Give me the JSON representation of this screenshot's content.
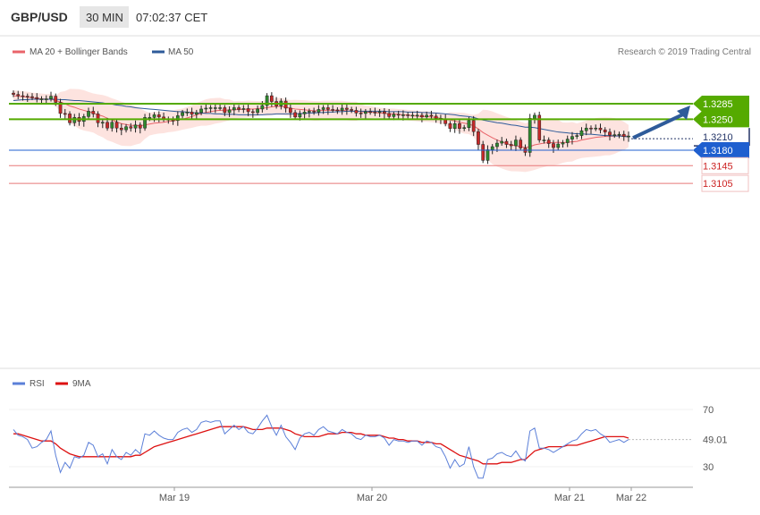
{
  "header": {
    "symbol": "GBP/USD",
    "timeframe": "30 MIN",
    "time": "07:02:37 CET"
  },
  "legend": {
    "ma20_label": "MA 20 + Bollinger Bands",
    "ma50_label": "MA 50",
    "copyright": "Research © 2019 Trading Central",
    "ma20_color": "#e9646a",
    "ma50_color": "#2e5b9a",
    "band_color": "#fcd9d4"
  },
  "rsi_legend": {
    "rsi_label": "RSI",
    "ma_label": "9MA",
    "rsi_color": "#5b7fd8",
    "ma_color": "#dd1111"
  },
  "levels": [
    {
      "value": 1.3285,
      "label": "1.3285",
      "type": "resistance",
      "color": "#55aa00"
    },
    {
      "value": 1.325,
      "label": "1.3250",
      "type": "resistance",
      "color": "#55aa00"
    },
    {
      "value": 1.321,
      "label": "1.3210",
      "type": "current",
      "color": "#223366"
    },
    {
      "value": 1.318,
      "label": "1.3180",
      "type": "pivot",
      "color": "#1f5fcf"
    },
    {
      "value": 1.3145,
      "label": "1.3145",
      "type": "support",
      "color": "#e87878"
    },
    {
      "value": 1.3105,
      "label": "1.3105",
      "type": "support",
      "color": "#e87878"
    }
  ],
  "arrow_target": 1.3285,
  "chart_data": {
    "type": "candlestick",
    "title": "GBP/USD 30 MIN",
    "x_ticks": [
      "Mar 19",
      "Mar 20",
      "Mar 21",
      "Mar 22"
    ],
    "ylim": [
      1.31,
      1.331
    ],
    "closes": [
      1.3306,
      1.3303,
      1.3302,
      1.3301,
      1.3299,
      1.3296,
      1.3296,
      1.3296,
      1.3302,
      1.3288,
      1.3263,
      1.3262,
      1.3242,
      1.3254,
      1.3245,
      1.3256,
      1.3268,
      1.3262,
      1.3242,
      1.3243,
      1.323,
      1.3243,
      1.323,
      1.3226,
      1.3233,
      1.323,
      1.3237,
      1.323,
      1.3254,
      1.3254,
      1.326,
      1.3255,
      1.325,
      1.3248,
      1.3247,
      1.3258,
      1.3265,
      1.3266,
      1.3261,
      1.3265,
      1.3273,
      1.3275,
      1.3276,
      1.3276,
      1.3276,
      1.3265,
      1.3271,
      1.3276,
      1.3272,
      1.3274,
      1.3267,
      1.3265,
      1.3273,
      1.3281,
      1.3303,
      1.329,
      1.328,
      1.3291,
      1.3275,
      1.3265,
      1.3255,
      1.3262,
      1.3266,
      1.3268,
      1.3266,
      1.3272,
      1.3276,
      1.3272,
      1.3271,
      1.327,
      1.3275,
      1.3272,
      1.327,
      1.3264,
      1.3263,
      1.3267,
      1.3266,
      1.3265,
      1.3267,
      1.3263,
      1.3256,
      1.3261,
      1.3259,
      1.326,
      1.3258,
      1.3259,
      1.3259,
      1.3255,
      1.3259,
      1.3257,
      1.3252,
      1.3251,
      1.324,
      1.3229,
      1.324,
      1.3229,
      1.3231,
      1.3247,
      1.3222,
      1.3193,
      1.3157,
      1.3181,
      1.3188,
      1.3196,
      1.32,
      1.3193,
      1.319,
      1.3203,
      1.3185,
      1.3175,
      1.3252,
      1.3259,
      1.3203,
      1.3203,
      1.3195,
      1.3186,
      1.3194,
      1.3197,
      1.3205,
      1.3211,
      1.3213,
      1.3224,
      1.323,
      1.3229,
      1.323,
      1.3226,
      1.3221,
      1.3214,
      1.3215,
      1.3216,
      1.3211,
      1.3212
    ],
    "ma20": [
      1.3303,
      1.3302,
      1.3301,
      1.33,
      1.3298,
      1.3297,
      1.3296,
      1.3295,
      1.3295,
      1.3292,
      1.3289,
      1.3285,
      1.328,
      1.3277,
      1.3273,
      1.327,
      1.3267,
      1.3264,
      1.326,
      1.3257,
      1.3252,
      1.3248,
      1.3244,
      1.324,
      1.3238,
      1.3236,
      1.3236,
      1.3235,
      1.3237,
      1.3239,
      1.3241,
      1.3242,
      1.3243,
      1.3245,
      1.3246,
      1.3248,
      1.325,
      1.3253,
      1.3256,
      1.326,
      1.3263,
      1.3265,
      1.3267,
      1.3269,
      1.327,
      1.327,
      1.3271,
      1.3271,
      1.3272,
      1.3272,
      1.3273,
      1.3273,
      1.3274,
      1.3275,
      1.3276,
      1.3278,
      1.3279,
      1.3279,
      1.3277,
      1.3275,
      1.3273,
      1.3272,
      1.3271,
      1.327,
      1.3269,
      1.3269,
      1.327,
      1.327,
      1.327,
      1.327,
      1.327,
      1.3269,
      1.3268,
      1.3268,
      1.3267,
      1.3266,
      1.3266,
      1.3265,
      1.3264,
      1.3263,
      1.3262,
      1.3262,
      1.3261,
      1.326,
      1.3259,
      1.3258,
      1.3257,
      1.3256,
      1.3256,
      1.3255,
      1.3254,
      1.3252,
      1.325,
      1.3248,
      1.3246,
      1.3243,
      1.3241,
      1.3239,
      1.3235,
      1.3228,
      1.322,
      1.3214,
      1.3208,
      1.3203,
      1.3199,
      1.3195,
      1.3192,
      1.319,
      1.3188,
      1.3186,
      1.3188,
      1.3192,
      1.3194,
      1.3196,
      1.3197,
      1.3197,
      1.3198,
      1.3197,
      1.3198,
      1.3199,
      1.32,
      1.3203,
      1.3205,
      1.3207,
      1.3209,
      1.321,
      1.3211,
      1.3211,
      1.3212,
      1.3213,
      1.3212,
      1.3212
    ],
    "ma50": [
      1.3292,
      1.3293,
      1.3294,
      1.3294,
      1.3295,
      1.3295,
      1.3295,
      1.3295,
      1.3295,
      1.3295,
      1.3294,
      1.3294,
      1.3293,
      1.3292,
      1.3292,
      1.3291,
      1.329,
      1.3289,
      1.3288,
      1.3287,
      1.3285,
      1.3284,
      1.3282,
      1.3281,
      1.3279,
      1.3278,
      1.3276,
      1.3275,
      1.3274,
      1.3273,
      1.3272,
      1.3271,
      1.327,
      1.3269,
      1.3268,
      1.3267,
      1.3267,
      1.3266,
      1.3265,
      1.3264,
      1.3264,
      1.3263,
      1.3263,
      1.3262,
      1.3262,
      1.3261,
      1.3261,
      1.3261,
      1.326,
      1.326,
      1.326,
      1.326,
      1.326,
      1.326,
      1.3261,
      1.3261,
      1.3262,
      1.3262,
      1.3262,
      1.3262,
      1.3262,
      1.3263,
      1.3263,
      1.3264,
      1.3264,
      1.3265,
      1.3265,
      1.3266,
      1.3266,
      1.3267,
      1.3267,
      1.3268,
      1.3268,
      1.3268,
      1.3268,
      1.3268,
      1.3268,
      1.3268,
      1.3268,
      1.3268,
      1.3267,
      1.3267,
      1.3267,
      1.3267,
      1.3266,
      1.3266,
      1.3266,
      1.3265,
      1.3265,
      1.3264,
      1.3264,
      1.3263,
      1.3262,
      1.3261,
      1.326,
      1.3258,
      1.3257,
      1.3256,
      1.3254,
      1.3251,
      1.3248,
      1.3246,
      1.3244,
      1.3242,
      1.3241,
      1.3239,
      1.3237,
      1.3236,
      1.3234,
      1.3232,
      1.3232,
      1.3231,
      1.3229,
      1.3227,
      1.3225,
      1.3223,
      1.3221,
      1.322,
      1.3219,
      1.3218,
      1.3217,
      1.3217,
      1.3216,
      1.3216,
      1.3215,
      1.3214,
      1.3213,
      1.3213,
      1.3212,
      1.3212,
      1.3211,
      1.321
    ],
    "rsi": {
      "ylim": [
        0,
        100
      ],
      "ticks": [
        30,
        70
      ],
      "last_value": 49.01,
      "last_label": "49.01",
      "rsi_values": [
        56,
        52,
        51,
        49,
        43,
        44,
        47,
        49,
        55,
        38,
        26,
        33,
        29,
        37,
        36,
        38,
        47,
        45,
        37,
        39,
        32,
        42,
        37,
        35,
        40,
        38,
        42,
        39,
        53,
        52,
        55,
        52,
        50,
        49,
        49,
        54,
        56,
        57,
        54,
        56,
        61,
        62,
        61,
        62,
        62,
        53,
        56,
        59,
        56,
        58,
        54,
        53,
        57,
        62,
        66,
        58,
        52,
        59,
        51,
        47,
        42,
        50,
        53,
        54,
        52,
        56,
        58,
        55,
        54,
        53,
        56,
        54,
        53,
        50,
        49,
        52,
        51,
        51,
        52,
        50,
        45,
        49,
        48,
        48,
        47,
        48,
        48,
        45,
        48,
        47,
        44,
        43,
        37,
        29,
        35,
        30,
        32,
        44,
        30,
        22,
        22,
        35,
        36,
        39,
        40,
        38,
        37,
        41,
        36,
        34,
        55,
        57,
        43,
        43,
        42,
        40,
        42,
        44,
        46,
        48,
        49,
        53,
        56,
        55,
        56,
        53,
        51,
        47,
        48,
        49,
        47,
        49
      ],
      "ma_values": [
        53,
        53,
        52,
        51,
        50,
        49,
        48,
        48,
        48,
        46,
        43,
        41,
        39,
        38,
        37,
        37,
        37,
        37,
        37,
        37,
        37,
        37,
        37,
        37,
        37,
        37,
        38,
        38,
        40,
        42,
        44,
        45,
        46,
        47,
        48,
        49,
        50,
        51,
        52,
        53,
        54,
        55,
        56,
        57,
        58,
        58,
        58,
        58,
        58,
        58,
        57,
        56,
        56,
        56,
        57,
        57,
        57,
        57,
        56,
        55,
        53,
        52,
        51,
        51,
        51,
        51,
        52,
        53,
        53,
        53,
        54,
        54,
        54,
        53,
        53,
        52,
        52,
        52,
        52,
        51,
        50,
        50,
        49,
        49,
        48,
        48,
        48,
        47,
        47,
        47,
        46,
        46,
        44,
        42,
        40,
        38,
        37,
        36,
        35,
        34,
        32,
        32,
        32,
        32,
        33,
        33,
        33,
        34,
        35,
        35,
        38,
        41,
        42,
        43,
        44,
        44,
        44,
        44,
        45,
        45,
        45,
        46,
        47,
        48,
        49,
        50,
        51,
        51,
        51,
        51,
        51,
        50
      ]
    }
  }
}
